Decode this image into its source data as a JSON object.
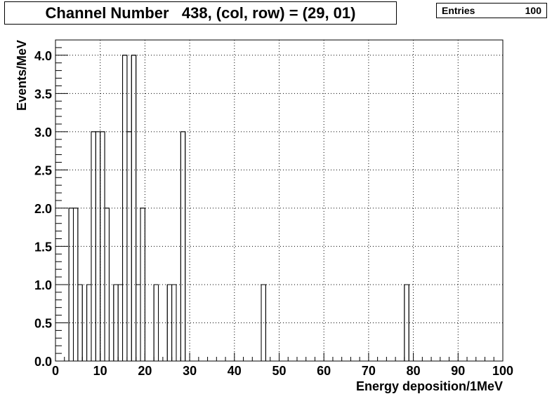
{
  "chart_data": {
    "type": "bar",
    "histogram": true,
    "title": "Channel Number   438, (col, row) = (29, 01)",
    "xlabel": "Energy deposition/1MeV",
    "ylabel": "Events/MeV",
    "xlim": [
      0,
      100
    ],
    "ylim": [
      0,
      4.2
    ],
    "grid": true,
    "x_ticks": [
      0,
      10,
      20,
      30,
      40,
      50,
      60,
      70,
      80,
      90,
      100
    ],
    "x_tick_labels": [
      "0",
      "10",
      "20",
      "30",
      "40",
      "50",
      "60",
      "70",
      "80",
      "90",
      "100"
    ],
    "y_ticks": [
      0,
      0.5,
      1.0,
      1.5,
      2.0,
      2.5,
      3.0,
      3.5,
      4.0
    ],
    "y_tick_labels": [
      "0.0",
      "0.5",
      "1.0",
      "1.5",
      "2.0",
      "2.5",
      "3.0",
      "3.5",
      "4.0"
    ],
    "bin_width": 1,
    "bins": [
      {
        "x": 3,
        "value": 2
      },
      {
        "x": 4,
        "value": 2
      },
      {
        "x": 5,
        "value": 1
      },
      {
        "x": 6,
        "value": 0
      },
      {
        "x": 7,
        "value": 1
      },
      {
        "x": 8,
        "value": 3
      },
      {
        "x": 9,
        "value": 3
      },
      {
        "x": 10,
        "value": 3
      },
      {
        "x": 11,
        "value": 2
      },
      {
        "x": 12,
        "value": 0
      },
      {
        "x": 13,
        "value": 1
      },
      {
        "x": 14,
        "value": 1
      },
      {
        "x": 15,
        "value": 4
      },
      {
        "x": 16,
        "value": 3
      },
      {
        "x": 17,
        "value": 4
      },
      {
        "x": 18,
        "value": 1
      },
      {
        "x": 19,
        "value": 2
      },
      {
        "x": 20,
        "value": 0
      },
      {
        "x": 21,
        "value": 0
      },
      {
        "x": 22,
        "value": 1
      },
      {
        "x": 23,
        "value": 0
      },
      {
        "x": 24,
        "value": 0
      },
      {
        "x": 25,
        "value": 1
      },
      {
        "x": 26,
        "value": 1
      },
      {
        "x": 27,
        "value": 0
      },
      {
        "x": 28,
        "value": 3
      },
      {
        "x": 46,
        "value": 1
      },
      {
        "x": 78,
        "value": 1
      }
    ],
    "stats": {
      "label": "Entries",
      "value": "100"
    }
  }
}
